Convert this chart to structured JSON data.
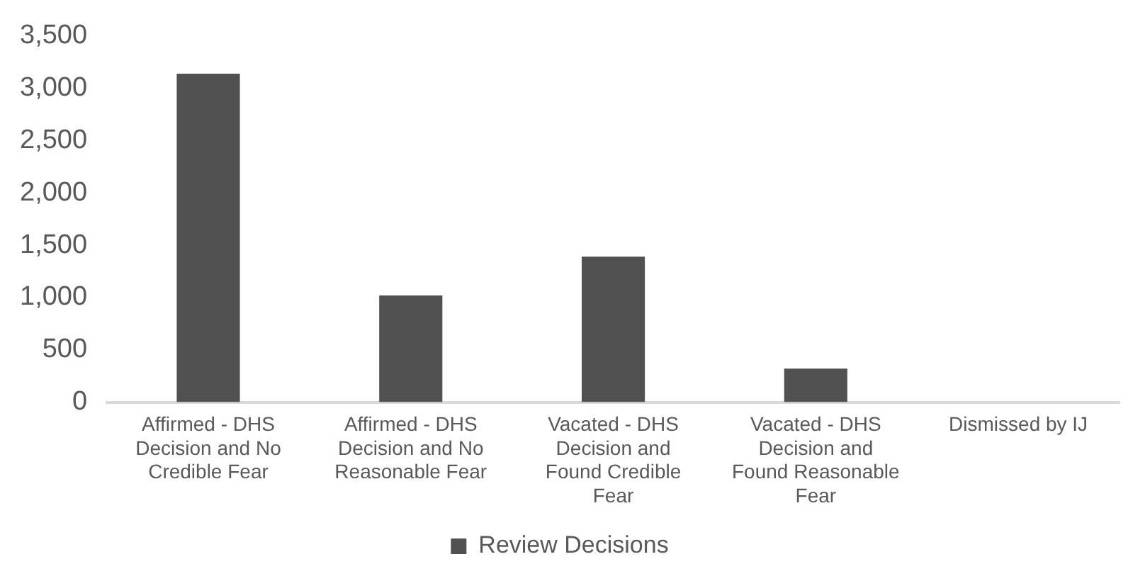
{
  "chart_data": {
    "type": "bar",
    "categories": [
      "Affirmed - DHS Decision and No Credible Fear",
      "Affirmed - DHS Decision and No Reasonable Fear",
      "Vacated - DHS Decision and Found Credible Fear",
      "Vacated - DHS Decision and Found Reasonable Fear",
      "Dismissed by IJ"
    ],
    "series": [
      {
        "name": "Review Decisions",
        "color": "#515151",
        "values": [
          3140,
          1020,
          1390,
          320,
          0
        ]
      }
    ],
    "ylim": [
      0,
      3500
    ],
    "yticks": [
      0,
      500,
      {
        "value": 1000,
        "label": "1,000"
      },
      {
        "value": 1500,
        "label": "1,500"
      },
      {
        "value": 2000,
        "label": "2,000"
      },
      {
        "value": 2500,
        "label": "2,500"
      },
      {
        "value": 3000,
        "label": "3,000"
      },
      {
        "value": 3500,
        "label": "3,500"
      }
    ],
    "grid": false,
    "legend": "bottom"
  }
}
